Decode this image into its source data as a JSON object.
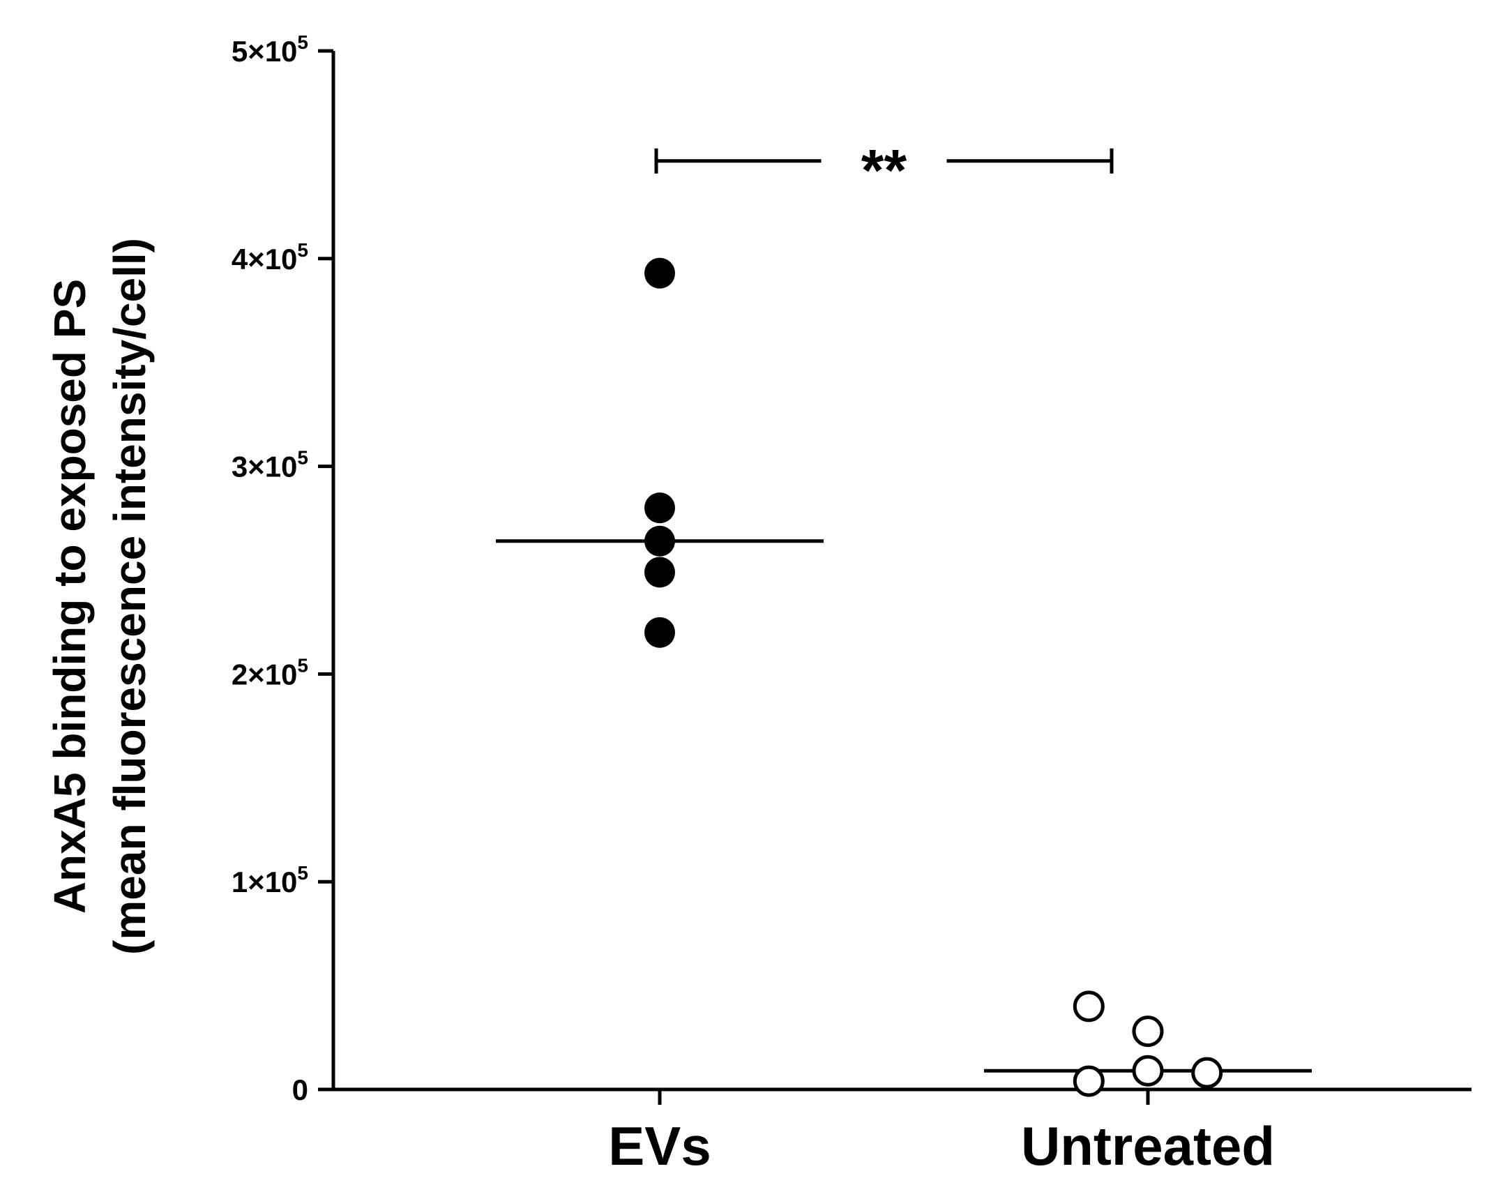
{
  "chart_data": {
    "type": "scatter",
    "title": "",
    "xlabel": "",
    "ylabel": {
      "line1": "AnxA5 binding to exposed PS",
      "line2": "(mean fluorescence intensity/cell)"
    },
    "ylim": [
      0,
      500000
    ],
    "yticks": [
      {
        "value": 0,
        "label": "0"
      },
      {
        "value": 100000,
        "label": "1×10",
        "exp": "5"
      },
      {
        "value": 200000,
        "label": "2×10",
        "exp": "5"
      },
      {
        "value": 300000,
        "label": "3×10",
        "exp": "5"
      },
      {
        "value": 400000,
        "label": "4×10",
        "exp": "5"
      },
      {
        "value": 500000,
        "label": "5×10",
        "exp": "5"
      }
    ],
    "categories": [
      "EVs",
      "Untreated"
    ],
    "series": [
      {
        "category": "EVs",
        "marker": "filled-circle",
        "color": "#000000",
        "points": [
          {
            "x_offset": 0,
            "y": 393000
          },
          {
            "x_offset": 0,
            "y": 280000
          },
          {
            "x_offset": 0,
            "y": 264000
          },
          {
            "x_offset": 0,
            "y": 249000
          },
          {
            "x_offset": 0,
            "y": 220000
          }
        ],
        "median": 264000
      },
      {
        "category": "Untreated",
        "marker": "open-circle",
        "color": "#000000",
        "points": [
          {
            "x_offset": -0.22,
            "y": 40000
          },
          {
            "x_offset": 0,
            "y": 28000
          },
          {
            "x_offset": 0,
            "y": 9000
          },
          {
            "x_offset": 0.22,
            "y": 8000
          },
          {
            "x_offset": -0.22,
            "y": 4000
          }
        ],
        "median": 9000
      }
    ],
    "significance": {
      "from": "EVs",
      "to": "Untreated",
      "y": 445000,
      "label": "**"
    },
    "grid": false,
    "legend": "none"
  }
}
